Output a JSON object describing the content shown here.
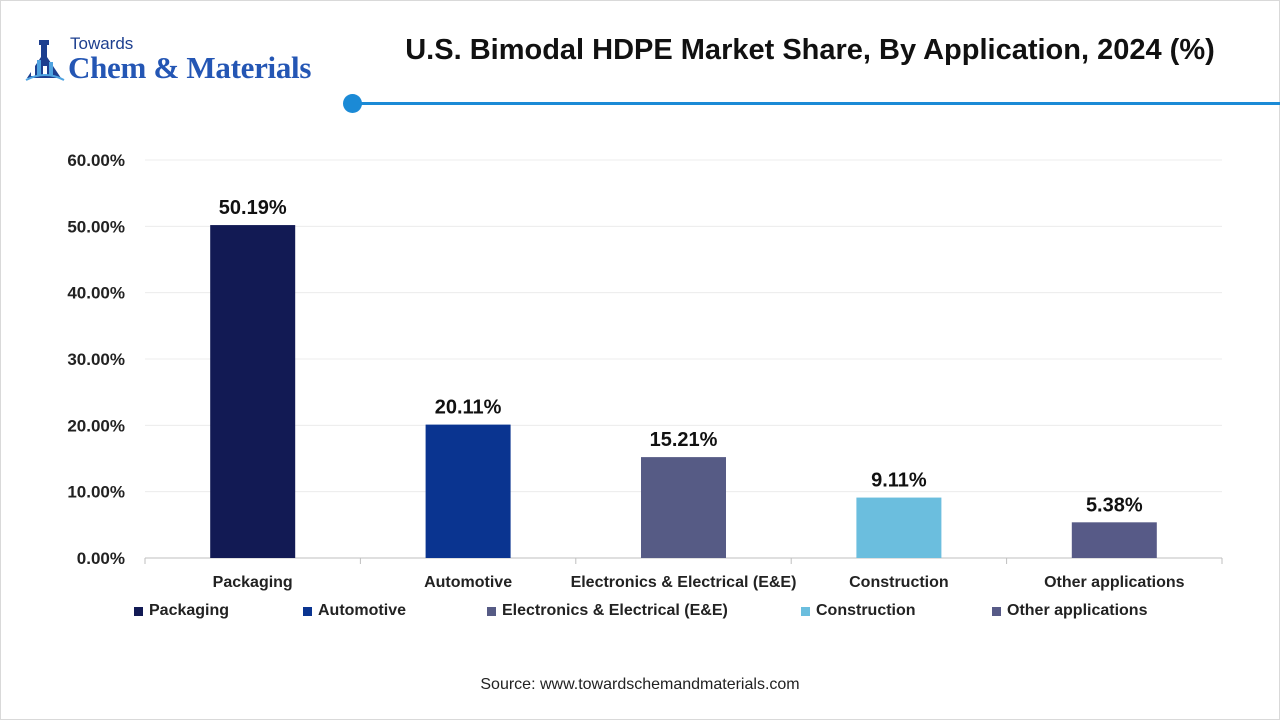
{
  "logo": {
    "top_text": "Towards",
    "brand_text": "Chem & Materials"
  },
  "header": {
    "title": "U.S. Bimodal HDPE Market Share, By Application, 2024 (%)"
  },
  "colors": {
    "accent": "#1b8ad6",
    "packaging": "#121a54",
    "automotive": "#0a3490",
    "electronics": "#565b85",
    "construction": "#6bbede",
    "other": "#575a87"
  },
  "chart_data": {
    "type": "bar",
    "title": "U.S. Bimodal HDPE Market Share, By Application, 2024 (%)",
    "categories": [
      "Packaging",
      "Automotive",
      "Electronics & Electrical (E&E)",
      "Construction",
      "Other applications"
    ],
    "values": [
      50.19,
      20.11,
      15.21,
      9.11,
      5.38
    ],
    "value_labels": [
      "50.19%",
      "20.11%",
      "15.21%",
      "9.11%",
      "5.38%"
    ],
    "bar_colors": [
      "#121a54",
      "#0a3490",
      "#565b85",
      "#6bbede",
      "#575a87"
    ],
    "ylim": [
      0,
      60
    ],
    "yticks": [
      "0.00%",
      "10.00%",
      "20.00%",
      "30.00%",
      "40.00%",
      "50.00%",
      "60.00%"
    ],
    "grid": true,
    "legend_position": "bottom",
    "xlabel": "",
    "ylabel": ""
  },
  "source": "Source: www.towardschemandmaterials.com"
}
